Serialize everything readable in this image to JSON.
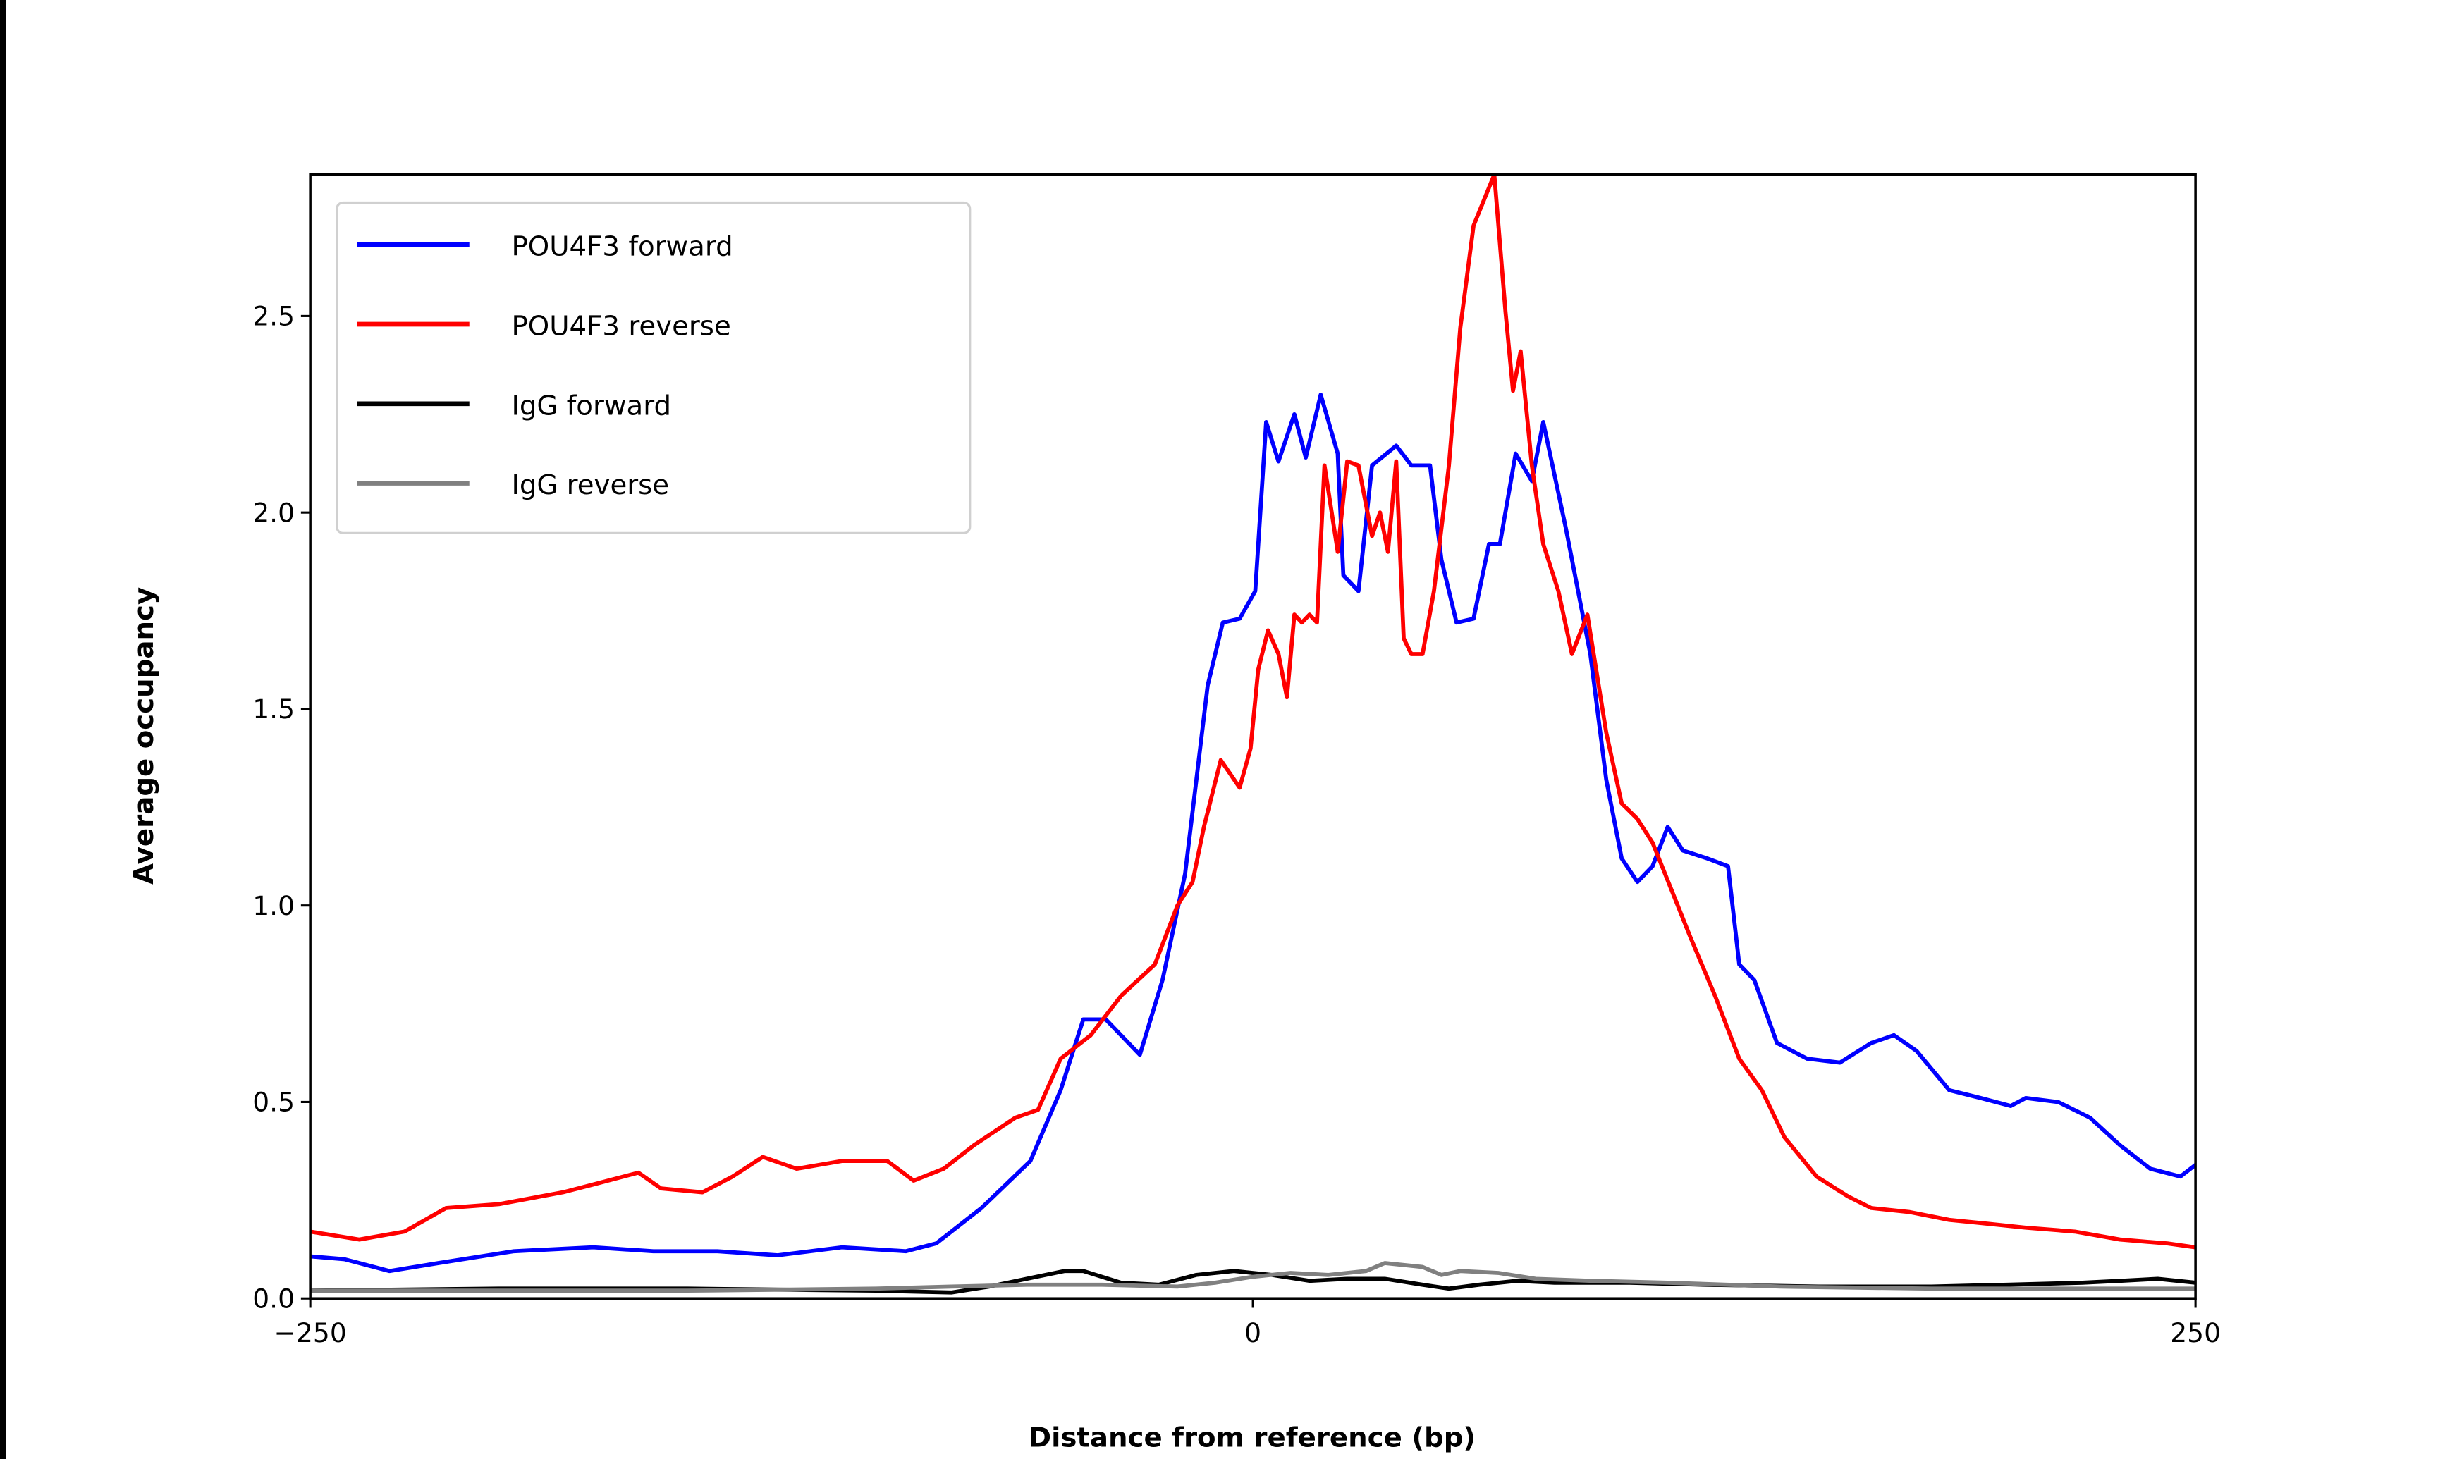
{
  "chart_data": {
    "type": "line",
    "title": "",
    "xlabel": "Distance from reference (bp)",
    "ylabel": "Average occupancy",
    "xlim": [
      -250,
      250
    ],
    "ylim": [
      0,
      2.86
    ],
    "xticks": [
      -250,
      0,
      250
    ],
    "xtick_labels": [
      "−250",
      "0",
      "250"
    ],
    "yticks": [
      0.0,
      0.5,
      1.0,
      1.5,
      2.0,
      2.5
    ],
    "ytick_labels": [
      "0.0",
      "0.5",
      "1.0",
      "1.5",
      "2.0",
      "2.5"
    ],
    "grid": false,
    "legend_position": "upper-left",
    "series": [
      {
        "name": "POU4F3 forward",
        "color": "#0000ff",
        "x": [
          -250,
          -241,
          -229,
          -216,
          -196,
          -175,
          -159,
          -142,
          -126,
          -109,
          -92,
          -84,
          -72,
          -59,
          -51,
          -45,
          -39,
          -30,
          -24,
          -18,
          -12,
          -8,
          -3.5,
          0.6,
          3.5,
          6.8,
          11,
          14,
          18,
          22.5,
          24,
          28,
          31.6,
          38,
          42,
          47,
          50,
          54,
          58.5,
          62.6,
          65.5,
          69.7,
          74,
          77,
          83,
          89.5,
          93.7,
          97.8,
          102,
          106,
          110,
          114,
          120.5,
          126,
          129,
          133,
          139,
          147,
          155.7,
          164,
          170,
          176,
          184.7,
          193,
          201,
          205,
          213.6,
          222,
          230,
          238,
          246,
          250
        ],
        "y": [
          0.107,
          0.1,
          0.07,
          0.09,
          0.12,
          0.13,
          0.12,
          0.12,
          0.11,
          0.13,
          0.12,
          0.14,
          0.23,
          0.35,
          0.53,
          0.71,
          0.71,
          0.62,
          0.81,
          1.08,
          1.56,
          1.72,
          1.73,
          1.8,
          2.23,
          2.13,
          2.25,
          2.14,
          2.3,
          2.15,
          1.84,
          1.8,
          2.12,
          2.17,
          2.12,
          2.12,
          1.88,
          1.72,
          1.73,
          1.92,
          1.92,
          2.15,
          2.08,
          2.23,
          1.96,
          1.64,
          1.32,
          1.12,
          1.06,
          1.1,
          1.2,
          1.14,
          1.12,
          1.1,
          0.85,
          0.81,
          0.65,
          0.61,
          0.6,
          0.65,
          0.67,
          0.63,
          0.53,
          0.51,
          0.49,
          0.51,
          0.5,
          0.46,
          0.39,
          0.33,
          0.31,
          0.34
        ]
      },
      {
        "name": "POU4F3 reverse",
        "color": "#ff0000",
        "x": [
          -250,
          -237,
          -225,
          -214,
          -200,
          -183,
          -175,
          -163,
          -157,
          -146,
          -138,
          -130,
          -121,
          -109,
          -97,
          -90,
          -82,
          -74,
          -63,
          -57,
          -51,
          -43,
          -35,
          -26,
          -20,
          -16,
          -13,
          -8.5,
          -3.5,
          -0.6,
          1.4,
          4,
          6.8,
          9,
          11,
          13,
          15,
          17,
          19,
          22.5,
          25,
          28,
          31.6,
          33.7,
          35.8,
          38,
          40,
          42,
          45,
          48,
          52,
          55,
          58.5,
          64,
          67,
          69,
          71,
          74,
          77,
          81,
          84.6,
          88.7,
          93.7,
          97.8,
          102,
          106,
          111,
          116,
          122.6,
          129,
          135,
          141,
          149.5,
          157.8,
          164,
          174,
          184.7,
          195,
          205,
          218,
          230,
          242.5,
          250
        ],
        "y": [
          0.17,
          0.15,
          0.17,
          0.23,
          0.24,
          0.27,
          0.29,
          0.32,
          0.28,
          0.27,
          0.31,
          0.36,
          0.33,
          0.35,
          0.35,
          0.3,
          0.33,
          0.39,
          0.46,
          0.48,
          0.61,
          0.67,
          0.77,
          0.85,
          1.0,
          1.06,
          1.2,
          1.37,
          1.3,
          1.4,
          1.6,
          1.7,
          1.64,
          1.53,
          1.74,
          1.72,
          1.74,
          1.72,
          2.12,
          1.9,
          2.13,
          2.12,
          1.94,
          2.0,
          1.9,
          2.13,
          1.68,
          1.64,
          1.64,
          1.8,
          2.12,
          2.47,
          2.73,
          2.86,
          2.51,
          2.31,
          2.41,
          2.12,
          1.92,
          1.8,
          1.64,
          1.74,
          1.44,
          1.26,
          1.22,
          1.16,
          1.04,
          0.92,
          0.77,
          0.61,
          0.53,
          0.41,
          0.31,
          0.26,
          0.23,
          0.22,
          0.2,
          0.19,
          0.18,
          0.17,
          0.15,
          0.14,
          0.13
        ]
      },
      {
        "name": "IgG forward",
        "color": "#000000",
        "x": [
          -250,
          -200,
          -150,
          -100,
          -80,
          -70,
          -60,
          -50,
          -45,
          -35,
          -25,
          -15,
          -5,
          5,
          15,
          25,
          35,
          45,
          52,
          60,
          70,
          80,
          100,
          120,
          150,
          180,
          200,
          220,
          230,
          240,
          250
        ],
        "y": [
          0.02,
          0.025,
          0.025,
          0.02,
          0.015,
          0.03,
          0.05,
          0.07,
          0.07,
          0.04,
          0.035,
          0.06,
          0.07,
          0.06,
          0.045,
          0.05,
          0.05,
          0.035,
          0.025,
          0.035,
          0.045,
          0.04,
          0.04,
          0.035,
          0.03,
          0.03,
          0.035,
          0.04,
          0.045,
          0.05,
          0.04
        ]
      },
      {
        "name": "IgG reverse",
        "color": "#808080",
        "x": [
          -250,
          -200,
          -150,
          -100,
          -80,
          -60,
          -40,
          -20,
          -10,
          0,
          10,
          20,
          30,
          35,
          45,
          50,
          55,
          65,
          75,
          90,
          110,
          140,
          180,
          220,
          250
        ],
        "y": [
          0.02,
          0.02,
          0.02,
          0.025,
          0.03,
          0.035,
          0.035,
          0.03,
          0.04,
          0.055,
          0.065,
          0.06,
          0.07,
          0.09,
          0.08,
          0.06,
          0.07,
          0.065,
          0.05,
          0.045,
          0.04,
          0.03,
          0.025,
          0.025,
          0.025
        ]
      }
    ]
  }
}
